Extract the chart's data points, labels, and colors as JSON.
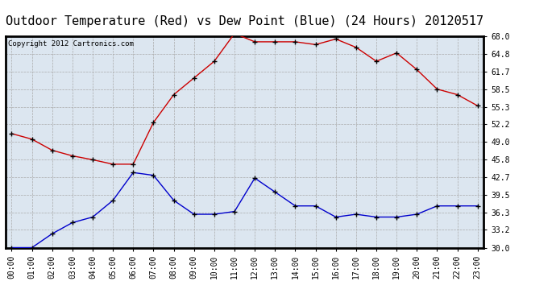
{
  "title": "Outdoor Temperature (Red) vs Dew Point (Blue) (24 Hours) 20120517",
  "copyright": "Copyright 2012 Cartronics.com",
  "hours": [
    0,
    1,
    2,
    3,
    4,
    5,
    6,
    7,
    8,
    9,
    10,
    11,
    12,
    13,
    14,
    15,
    16,
    17,
    18,
    19,
    20,
    21,
    22,
    23
  ],
  "x_labels": [
    "00:00",
    "01:00",
    "02:00",
    "03:00",
    "04:00",
    "05:00",
    "06:00",
    "07:00",
    "08:00",
    "09:00",
    "10:00",
    "11:00",
    "12:00",
    "13:00",
    "14:00",
    "15:00",
    "16:00",
    "17:00",
    "18:00",
    "19:00",
    "20:00",
    "21:00",
    "22:00",
    "23:00"
  ],
  "temp_red": [
    50.5,
    49.5,
    47.5,
    46.5,
    45.8,
    45.0,
    45.0,
    52.5,
    57.5,
    60.5,
    63.5,
    68.5,
    67.0,
    67.0,
    67.0,
    66.5,
    67.5,
    66.0,
    63.5,
    65.0,
    62.0,
    58.5,
    57.5,
    55.5
  ],
  "dew_blue": [
    30.0,
    30.0,
    32.5,
    34.5,
    35.5,
    38.5,
    43.5,
    43.0,
    38.5,
    36.0,
    36.0,
    36.5,
    42.5,
    40.0,
    37.5,
    37.5,
    35.5,
    36.0,
    35.5,
    35.5,
    36.0,
    37.5,
    37.5,
    37.5
  ],
  "ylim": [
    30.0,
    68.0
  ],
  "yticks": [
    30.0,
    33.2,
    36.3,
    39.5,
    42.7,
    45.8,
    49.0,
    52.2,
    55.3,
    58.5,
    61.7,
    64.8,
    68.0
  ],
  "red_color": "#cc0000",
  "blue_color": "#0000cc",
  "bg_color": "#ffffff",
  "plot_bg_color": "#dce6f0",
  "grid_color": "#aaaaaa",
  "title_fontsize": 11,
  "copyright_fontsize": 6.5,
  "tick_fontsize": 7,
  "marker": "+"
}
